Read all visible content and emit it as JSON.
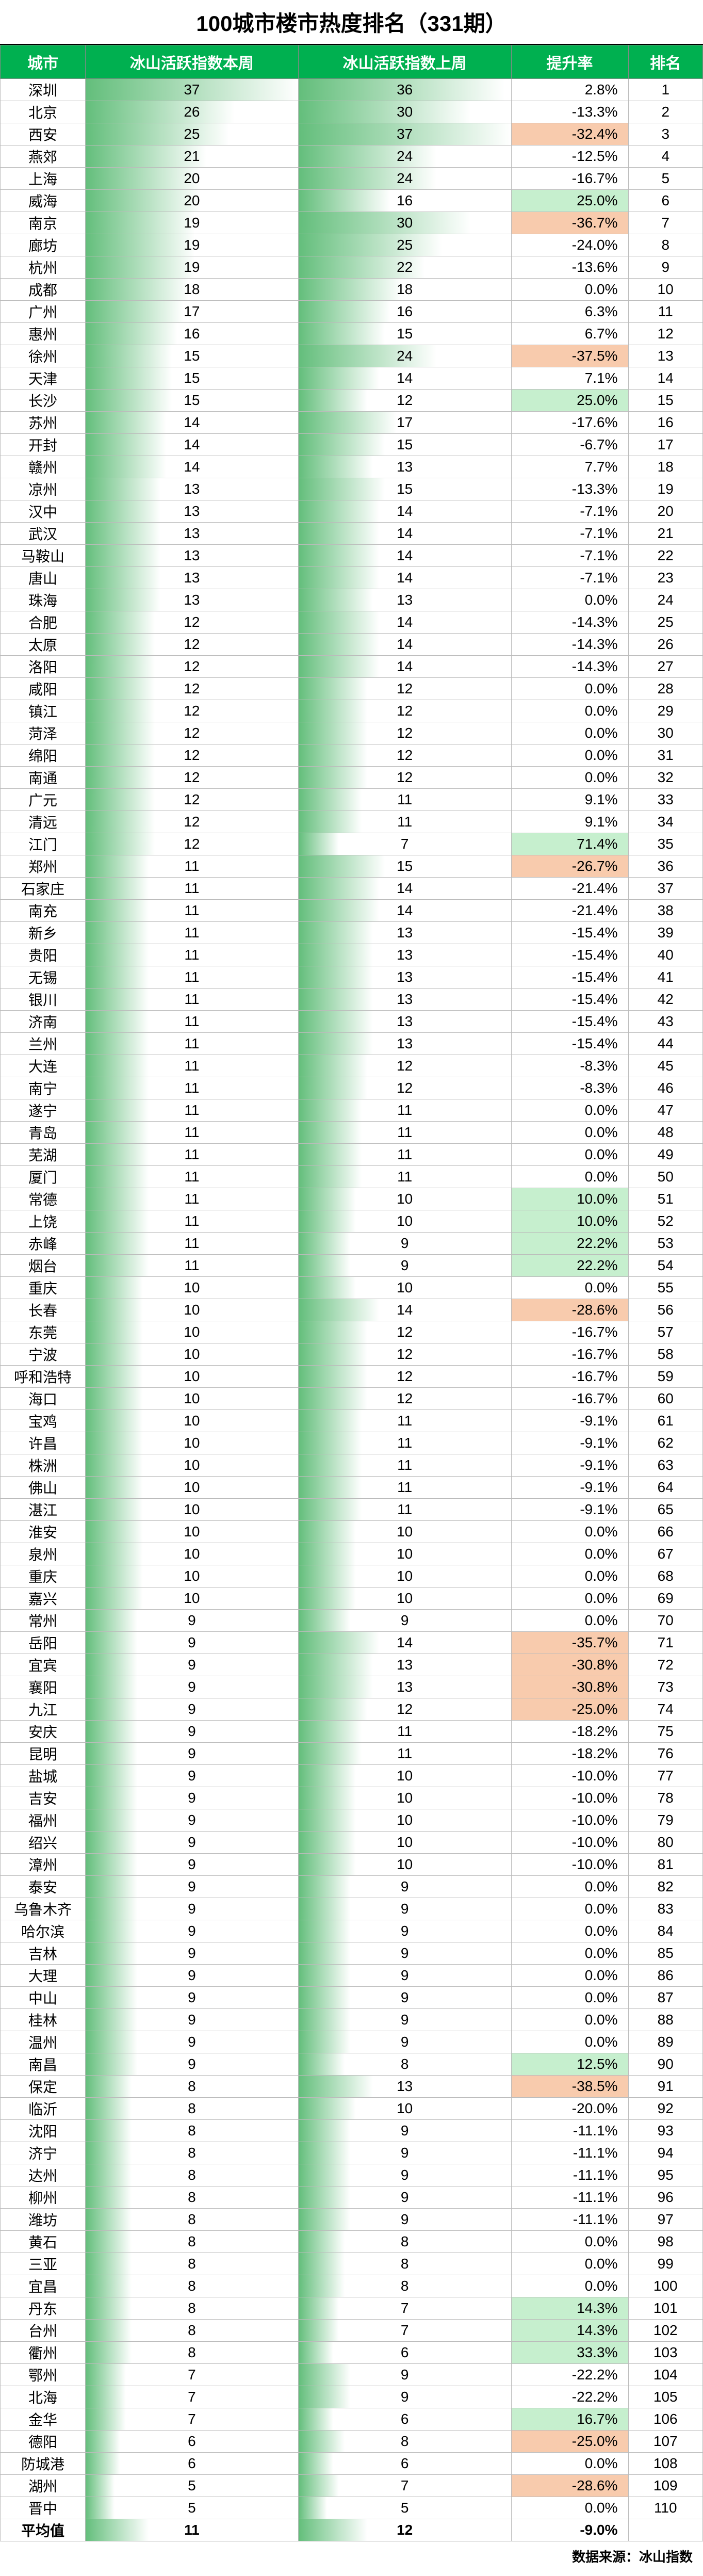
{
  "title": "100城市楼市热度排名（331期）",
  "columns": {
    "city": "城市",
    "idx_this": "冰山活跃指数本周",
    "idx_last": "冰山活跃指数上周",
    "rate": "提升率",
    "rank": "排名"
  },
  "style": {
    "header_bg": "#00b050",
    "header_fg": "#ffffff",
    "bar_color_start": "#63be7b",
    "bar_color_end": "#ffffff",
    "rate_pos_bg": "#c6efce",
    "rate_neg_bg": "#f8cbad",
    "idx_max": 37,
    "font_size_title": 42,
    "font_size_header": 30,
    "font_size_cell": 28
  },
  "rows": [
    {
      "city": "深圳",
      "a": 37,
      "b": 36,
      "rate": "2.8%",
      "rank": 1,
      "hl": 0
    },
    {
      "city": "北京",
      "a": 26,
      "b": 30,
      "rate": "-13.3%",
      "rank": 2,
      "hl": 0
    },
    {
      "city": "西安",
      "a": 25,
      "b": 37,
      "rate": "-32.4%",
      "rank": 3,
      "hl": -1
    },
    {
      "city": "燕郊",
      "a": 21,
      "b": 24,
      "rate": "-12.5%",
      "rank": 4,
      "hl": 0
    },
    {
      "city": "上海",
      "a": 20,
      "b": 24,
      "rate": "-16.7%",
      "rank": 5,
      "hl": 0
    },
    {
      "city": "威海",
      "a": 20,
      "b": 16,
      "rate": "25.0%",
      "rank": 6,
      "hl": 1
    },
    {
      "city": "南京",
      "a": 19,
      "b": 30,
      "rate": "-36.7%",
      "rank": 7,
      "hl": -1
    },
    {
      "city": "廊坊",
      "a": 19,
      "b": 25,
      "rate": "-24.0%",
      "rank": 8,
      "hl": 0
    },
    {
      "city": "杭州",
      "a": 19,
      "b": 22,
      "rate": "-13.6%",
      "rank": 9,
      "hl": 0
    },
    {
      "city": "成都",
      "a": 18,
      "b": 18,
      "rate": "0.0%",
      "rank": 10,
      "hl": 0
    },
    {
      "city": "广州",
      "a": 17,
      "b": 16,
      "rate": "6.3%",
      "rank": 11,
      "hl": 0
    },
    {
      "city": "惠州",
      "a": 16,
      "b": 15,
      "rate": "6.7%",
      "rank": 12,
      "hl": 0
    },
    {
      "city": "徐州",
      "a": 15,
      "b": 24,
      "rate": "-37.5%",
      "rank": 13,
      "hl": -1
    },
    {
      "city": "天津",
      "a": 15,
      "b": 14,
      "rate": "7.1%",
      "rank": 14,
      "hl": 0
    },
    {
      "city": "长沙",
      "a": 15,
      "b": 12,
      "rate": "25.0%",
      "rank": 15,
      "hl": 1
    },
    {
      "city": "苏州",
      "a": 14,
      "b": 17,
      "rate": "-17.6%",
      "rank": 16,
      "hl": 0
    },
    {
      "city": "开封",
      "a": 14,
      "b": 15,
      "rate": "-6.7%",
      "rank": 17,
      "hl": 0
    },
    {
      "city": "赣州",
      "a": 14,
      "b": 13,
      "rate": "7.7%",
      "rank": 18,
      "hl": 0
    },
    {
      "city": "凉州",
      "a": 13,
      "b": 15,
      "rate": "-13.3%",
      "rank": 19,
      "hl": 0
    },
    {
      "city": "汉中",
      "a": 13,
      "b": 14,
      "rate": "-7.1%",
      "rank": 20,
      "hl": 0
    },
    {
      "city": "武汉",
      "a": 13,
      "b": 14,
      "rate": "-7.1%",
      "rank": 21,
      "hl": 0
    },
    {
      "city": "马鞍山",
      "a": 13,
      "b": 14,
      "rate": "-7.1%",
      "rank": 22,
      "hl": 0
    },
    {
      "city": "唐山",
      "a": 13,
      "b": 14,
      "rate": "-7.1%",
      "rank": 23,
      "hl": 0
    },
    {
      "city": "珠海",
      "a": 13,
      "b": 13,
      "rate": "0.0%",
      "rank": 24,
      "hl": 0
    },
    {
      "city": "合肥",
      "a": 12,
      "b": 14,
      "rate": "-14.3%",
      "rank": 25,
      "hl": 0
    },
    {
      "city": "太原",
      "a": 12,
      "b": 14,
      "rate": "-14.3%",
      "rank": 26,
      "hl": 0
    },
    {
      "city": "洛阳",
      "a": 12,
      "b": 14,
      "rate": "-14.3%",
      "rank": 27,
      "hl": 0
    },
    {
      "city": "咸阳",
      "a": 12,
      "b": 12,
      "rate": "0.0%",
      "rank": 28,
      "hl": 0
    },
    {
      "city": "镇江",
      "a": 12,
      "b": 12,
      "rate": "0.0%",
      "rank": 29,
      "hl": 0
    },
    {
      "city": "菏泽",
      "a": 12,
      "b": 12,
      "rate": "0.0%",
      "rank": 30,
      "hl": 0
    },
    {
      "city": "绵阳",
      "a": 12,
      "b": 12,
      "rate": "0.0%",
      "rank": 31,
      "hl": 0
    },
    {
      "city": "南通",
      "a": 12,
      "b": 12,
      "rate": "0.0%",
      "rank": 32,
      "hl": 0
    },
    {
      "city": "广元",
      "a": 12,
      "b": 11,
      "rate": "9.1%",
      "rank": 33,
      "hl": 0
    },
    {
      "city": "清远",
      "a": 12,
      "b": 11,
      "rate": "9.1%",
      "rank": 34,
      "hl": 0
    },
    {
      "city": "江门",
      "a": 12,
      "b": 7,
      "rate": "71.4%",
      "rank": 35,
      "hl": 1
    },
    {
      "city": "郑州",
      "a": 11,
      "b": 15,
      "rate": "-26.7%",
      "rank": 36,
      "hl": -1
    },
    {
      "city": "石家庄",
      "a": 11,
      "b": 14,
      "rate": "-21.4%",
      "rank": 37,
      "hl": 0
    },
    {
      "city": "南充",
      "a": 11,
      "b": 14,
      "rate": "-21.4%",
      "rank": 38,
      "hl": 0
    },
    {
      "city": "新乡",
      "a": 11,
      "b": 13,
      "rate": "-15.4%",
      "rank": 39,
      "hl": 0
    },
    {
      "city": "贵阳",
      "a": 11,
      "b": 13,
      "rate": "-15.4%",
      "rank": 40,
      "hl": 0
    },
    {
      "city": "无锡",
      "a": 11,
      "b": 13,
      "rate": "-15.4%",
      "rank": 41,
      "hl": 0
    },
    {
      "city": "银川",
      "a": 11,
      "b": 13,
      "rate": "-15.4%",
      "rank": 42,
      "hl": 0
    },
    {
      "city": "济南",
      "a": 11,
      "b": 13,
      "rate": "-15.4%",
      "rank": 43,
      "hl": 0
    },
    {
      "city": "兰州",
      "a": 11,
      "b": 13,
      "rate": "-15.4%",
      "rank": 44,
      "hl": 0
    },
    {
      "city": "大连",
      "a": 11,
      "b": 12,
      "rate": "-8.3%",
      "rank": 45,
      "hl": 0
    },
    {
      "city": "南宁",
      "a": 11,
      "b": 12,
      "rate": "-8.3%",
      "rank": 46,
      "hl": 0
    },
    {
      "city": "遂宁",
      "a": 11,
      "b": 11,
      "rate": "0.0%",
      "rank": 47,
      "hl": 0
    },
    {
      "city": "青岛",
      "a": 11,
      "b": 11,
      "rate": "0.0%",
      "rank": 48,
      "hl": 0
    },
    {
      "city": "芜湖",
      "a": 11,
      "b": 11,
      "rate": "0.0%",
      "rank": 49,
      "hl": 0
    },
    {
      "city": "厦门",
      "a": 11,
      "b": 11,
      "rate": "0.0%",
      "rank": 50,
      "hl": 0
    },
    {
      "city": "常德",
      "a": 11,
      "b": 10,
      "rate": "10.0%",
      "rank": 51,
      "hl": 1
    },
    {
      "city": "上饶",
      "a": 11,
      "b": 10,
      "rate": "10.0%",
      "rank": 52,
      "hl": 1
    },
    {
      "city": "赤峰",
      "a": 11,
      "b": 9,
      "rate": "22.2%",
      "rank": 53,
      "hl": 1
    },
    {
      "city": "烟台",
      "a": 11,
      "b": 9,
      "rate": "22.2%",
      "rank": 54,
      "hl": 1
    },
    {
      "city": "重庆",
      "a": 10,
      "b": 10,
      "rate": "0.0%",
      "rank": 55,
      "hl": 0
    },
    {
      "city": "长春",
      "a": 10,
      "b": 14,
      "rate": "-28.6%",
      "rank": 56,
      "hl": -1
    },
    {
      "city": "东莞",
      "a": 10,
      "b": 12,
      "rate": "-16.7%",
      "rank": 57,
      "hl": 0
    },
    {
      "city": "宁波",
      "a": 10,
      "b": 12,
      "rate": "-16.7%",
      "rank": 58,
      "hl": 0
    },
    {
      "city": "呼和浩特",
      "a": 10,
      "b": 12,
      "rate": "-16.7%",
      "rank": 59,
      "hl": 0
    },
    {
      "city": "海口",
      "a": 10,
      "b": 12,
      "rate": "-16.7%",
      "rank": 60,
      "hl": 0
    },
    {
      "city": "宝鸡",
      "a": 10,
      "b": 11,
      "rate": "-9.1%",
      "rank": 61,
      "hl": 0
    },
    {
      "city": "许昌",
      "a": 10,
      "b": 11,
      "rate": "-9.1%",
      "rank": 62,
      "hl": 0
    },
    {
      "city": "株洲",
      "a": 10,
      "b": 11,
      "rate": "-9.1%",
      "rank": 63,
      "hl": 0
    },
    {
      "city": "佛山",
      "a": 10,
      "b": 11,
      "rate": "-9.1%",
      "rank": 64,
      "hl": 0
    },
    {
      "city": "湛江",
      "a": 10,
      "b": 11,
      "rate": "-9.1%",
      "rank": 65,
      "hl": 0
    },
    {
      "city": "淮安",
      "a": 10,
      "b": 10,
      "rate": "0.0%",
      "rank": 66,
      "hl": 0
    },
    {
      "city": "泉州",
      "a": 10,
      "b": 10,
      "rate": "0.0%",
      "rank": 67,
      "hl": 0
    },
    {
      "city": "重庆",
      "a": 10,
      "b": 10,
      "rate": "0.0%",
      "rank": 68,
      "hl": 0
    },
    {
      "city": "嘉兴",
      "a": 10,
      "b": 10,
      "rate": "0.0%",
      "rank": 69,
      "hl": 0
    },
    {
      "city": "常州",
      "a": 9,
      "b": 9,
      "rate": "0.0%",
      "rank": 70,
      "hl": 0
    },
    {
      "city": "岳阳",
      "a": 9,
      "b": 14,
      "rate": "-35.7%",
      "rank": 71,
      "hl": -1
    },
    {
      "city": "宜宾",
      "a": 9,
      "b": 13,
      "rate": "-30.8%",
      "rank": 72,
      "hl": -1
    },
    {
      "city": "襄阳",
      "a": 9,
      "b": 13,
      "rate": "-30.8%",
      "rank": 73,
      "hl": -1
    },
    {
      "city": "九江",
      "a": 9,
      "b": 12,
      "rate": "-25.0%",
      "rank": 74,
      "hl": -1
    },
    {
      "city": "安庆",
      "a": 9,
      "b": 11,
      "rate": "-18.2%",
      "rank": 75,
      "hl": 0
    },
    {
      "city": "昆明",
      "a": 9,
      "b": 11,
      "rate": "-18.2%",
      "rank": 76,
      "hl": 0
    },
    {
      "city": "盐城",
      "a": 9,
      "b": 10,
      "rate": "-10.0%",
      "rank": 77,
      "hl": 0
    },
    {
      "city": "吉安",
      "a": 9,
      "b": 10,
      "rate": "-10.0%",
      "rank": 78,
      "hl": 0
    },
    {
      "city": "福州",
      "a": 9,
      "b": 10,
      "rate": "-10.0%",
      "rank": 79,
      "hl": 0
    },
    {
      "city": "绍兴",
      "a": 9,
      "b": 10,
      "rate": "-10.0%",
      "rank": 80,
      "hl": 0
    },
    {
      "city": "漳州",
      "a": 9,
      "b": 10,
      "rate": "-10.0%",
      "rank": 81,
      "hl": 0
    },
    {
      "city": "泰安",
      "a": 9,
      "b": 9,
      "rate": "0.0%",
      "rank": 82,
      "hl": 0
    },
    {
      "city": "乌鲁木齐",
      "a": 9,
      "b": 9,
      "rate": "0.0%",
      "rank": 83,
      "hl": 0
    },
    {
      "city": "哈尔滨",
      "a": 9,
      "b": 9,
      "rate": "0.0%",
      "rank": 84,
      "hl": 0
    },
    {
      "city": "吉林",
      "a": 9,
      "b": 9,
      "rate": "0.0%",
      "rank": 85,
      "hl": 0
    },
    {
      "city": "大理",
      "a": 9,
      "b": 9,
      "rate": "0.0%",
      "rank": 86,
      "hl": 0
    },
    {
      "city": "中山",
      "a": 9,
      "b": 9,
      "rate": "0.0%",
      "rank": 87,
      "hl": 0
    },
    {
      "city": "桂林",
      "a": 9,
      "b": 9,
      "rate": "0.0%",
      "rank": 88,
      "hl": 0
    },
    {
      "city": "温州",
      "a": 9,
      "b": 9,
      "rate": "0.0%",
      "rank": 89,
      "hl": 0
    },
    {
      "city": "南昌",
      "a": 9,
      "b": 8,
      "rate": "12.5%",
      "rank": 90,
      "hl": 1
    },
    {
      "city": "保定",
      "a": 8,
      "b": 13,
      "rate": "-38.5%",
      "rank": 91,
      "hl": -1
    },
    {
      "city": "临沂",
      "a": 8,
      "b": 10,
      "rate": "-20.0%",
      "rank": 92,
      "hl": 0
    },
    {
      "city": "沈阳",
      "a": 8,
      "b": 9,
      "rate": "-11.1%",
      "rank": 93,
      "hl": 0
    },
    {
      "city": "济宁",
      "a": 8,
      "b": 9,
      "rate": "-11.1%",
      "rank": 94,
      "hl": 0
    },
    {
      "city": "达州",
      "a": 8,
      "b": 9,
      "rate": "-11.1%",
      "rank": 95,
      "hl": 0
    },
    {
      "city": "柳州",
      "a": 8,
      "b": 9,
      "rate": "-11.1%",
      "rank": 96,
      "hl": 0
    },
    {
      "city": "潍坊",
      "a": 8,
      "b": 9,
      "rate": "-11.1%",
      "rank": 97,
      "hl": 0
    },
    {
      "city": "黄石",
      "a": 8,
      "b": 8,
      "rate": "0.0%",
      "rank": 98,
      "hl": 0
    },
    {
      "city": "三亚",
      "a": 8,
      "b": 8,
      "rate": "0.0%",
      "rank": 99,
      "hl": 0
    },
    {
      "city": "宜昌",
      "a": 8,
      "b": 8,
      "rate": "0.0%",
      "rank": 100,
      "hl": 0
    },
    {
      "city": "丹东",
      "a": 8,
      "b": 7,
      "rate": "14.3%",
      "rank": 101,
      "hl": 1
    },
    {
      "city": "台州",
      "a": 8,
      "b": 7,
      "rate": "14.3%",
      "rank": 102,
      "hl": 1
    },
    {
      "city": "衢州",
      "a": 8,
      "b": 6,
      "rate": "33.3%",
      "rank": 103,
      "hl": 1
    },
    {
      "city": "鄂州",
      "a": 7,
      "b": 9,
      "rate": "-22.2%",
      "rank": 104,
      "hl": 0
    },
    {
      "city": "北海",
      "a": 7,
      "b": 9,
      "rate": "-22.2%",
      "rank": 105,
      "hl": 0
    },
    {
      "city": "金华",
      "a": 7,
      "b": 6,
      "rate": "16.7%",
      "rank": 106,
      "hl": 1
    },
    {
      "city": "德阳",
      "a": 6,
      "b": 8,
      "rate": "-25.0%",
      "rank": 107,
      "hl": -1
    },
    {
      "city": "防城港",
      "a": 6,
      "b": 6,
      "rate": "0.0%",
      "rank": 108,
      "hl": 0
    },
    {
      "city": "湖州",
      "a": 5,
      "b": 7,
      "rate": "-28.6%",
      "rank": 109,
      "hl": -1
    },
    {
      "city": "晋中",
      "a": 5,
      "b": 5,
      "rate": "0.0%",
      "rank": 110,
      "hl": 0
    }
  ],
  "average": {
    "label": "平均值",
    "a": 11,
    "b": 12,
    "rate": "-9.0%",
    "rank": ""
  },
  "footer": "数据来源：冰山指数",
  "watermark": "冰山指数"
}
